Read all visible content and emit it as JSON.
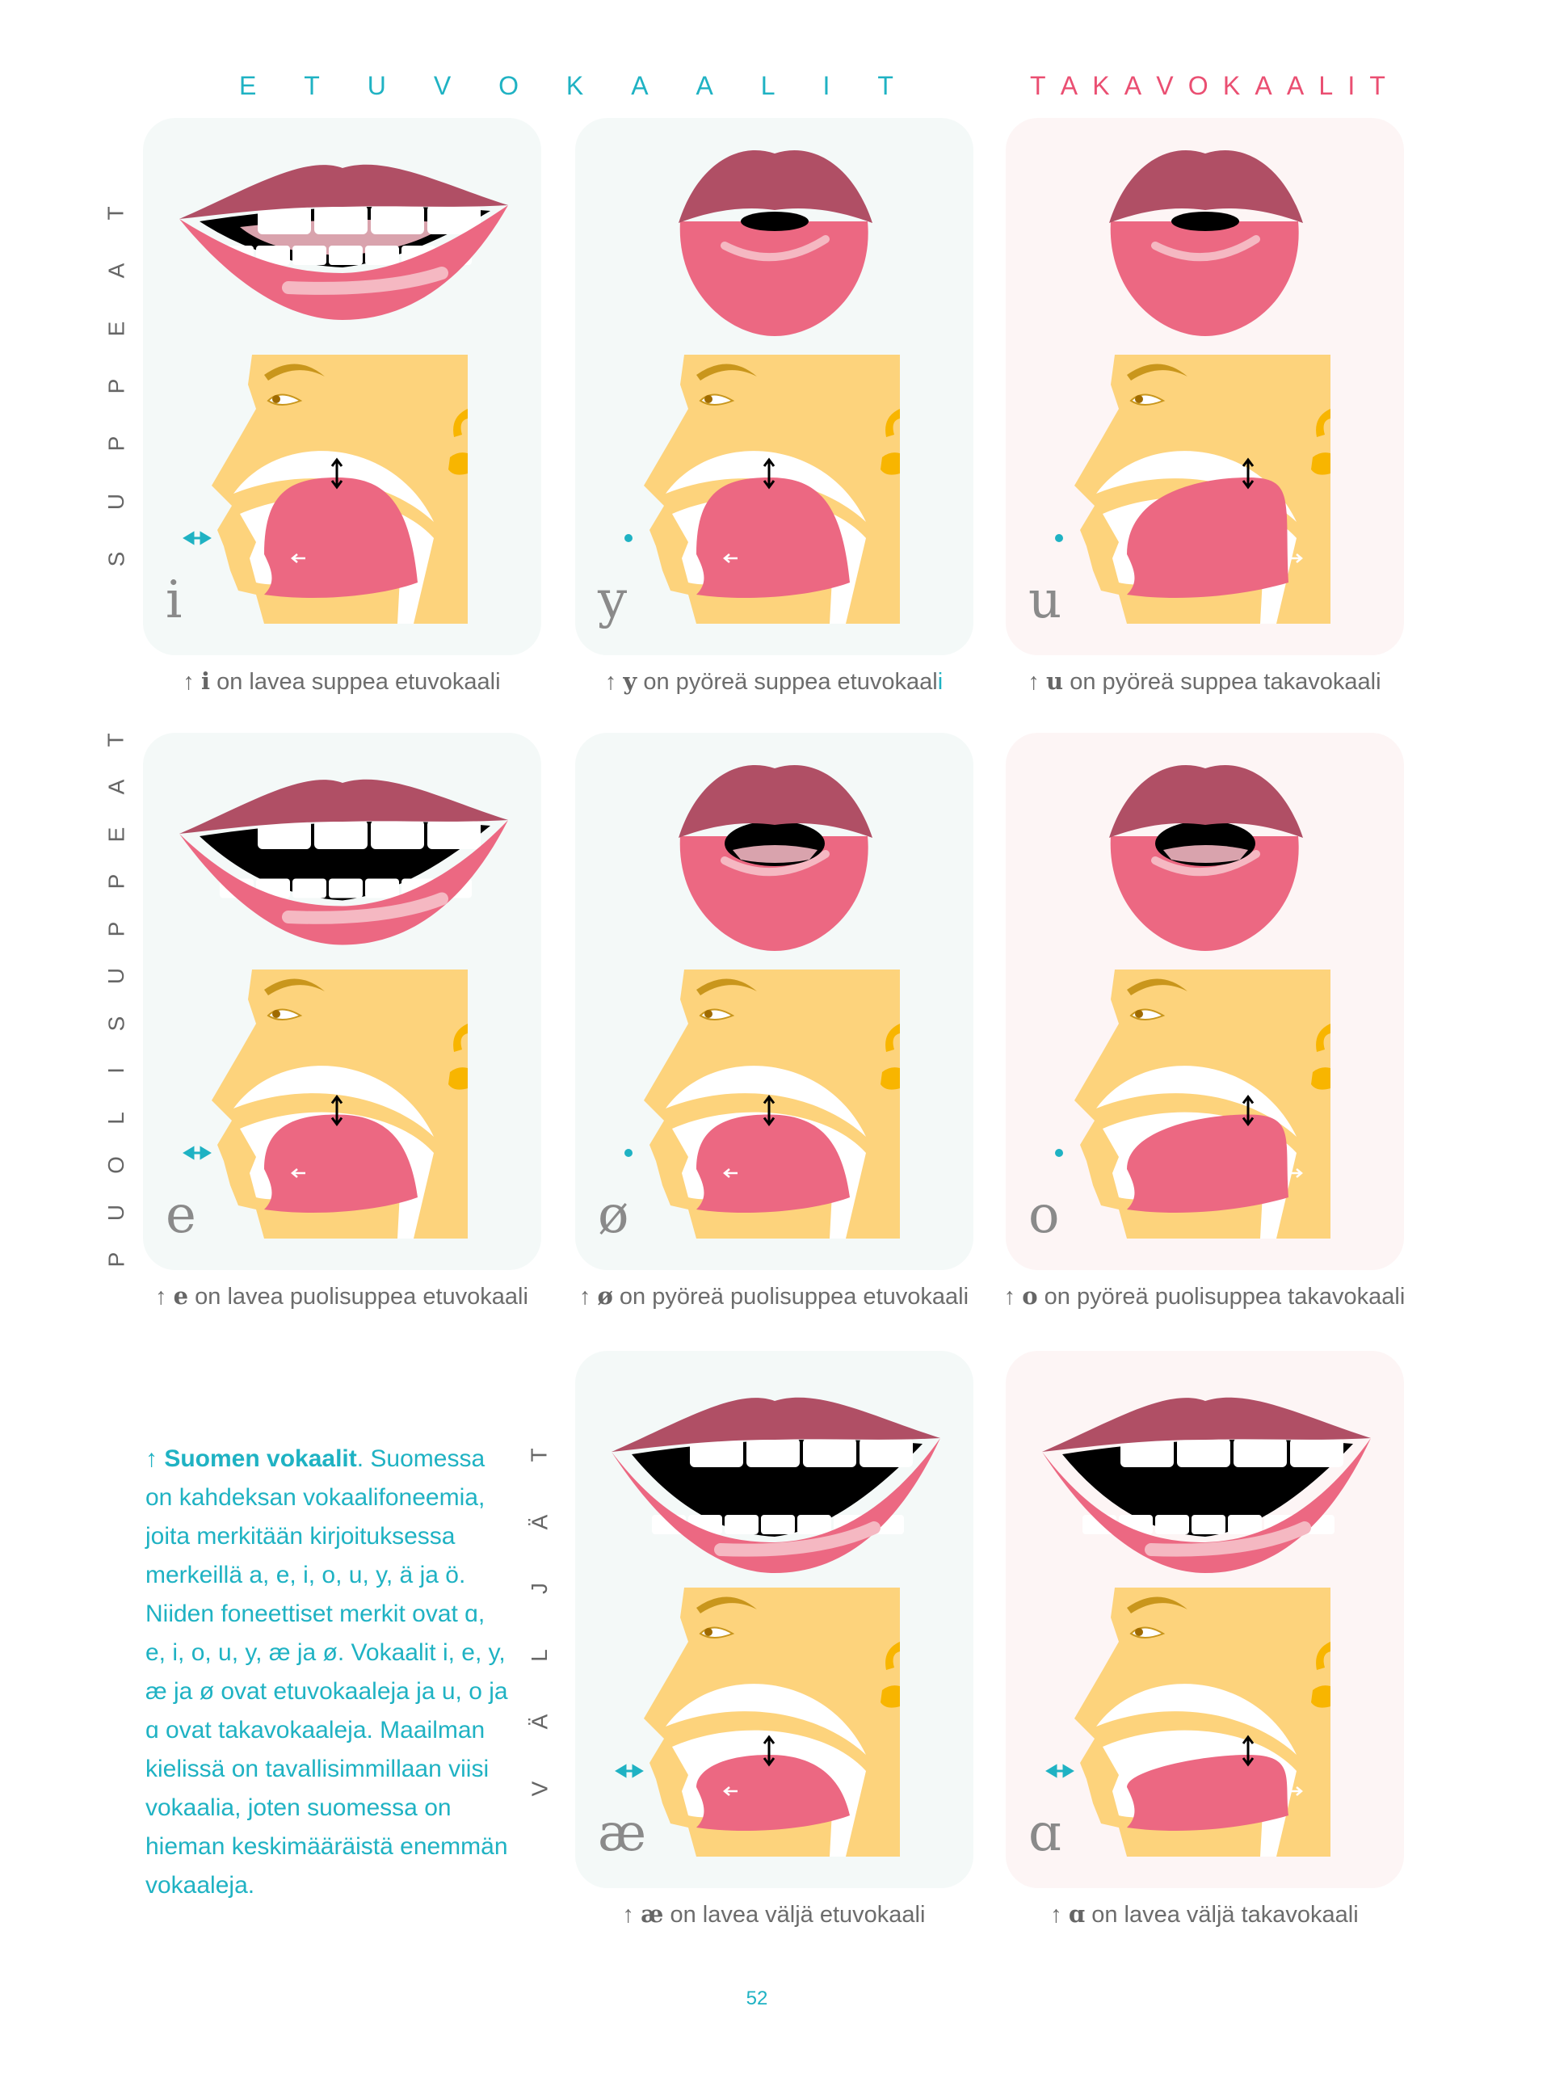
{
  "headers": {
    "front": "ETUVOKAALIT",
    "back": "TAKAVOKAALIT"
  },
  "row_labels": {
    "close": "SUPPEAT",
    "mid": "PUOLISUPPEAT",
    "open": "VÄLJÄT"
  },
  "colors": {
    "teal": "#1fb2c3",
    "pink": "#ea4f72",
    "upper_lip": "#b04f65",
    "lower_lip": "#ec6882",
    "face": "#fdd37c",
    "ear": "#f8b500"
  },
  "vowels": [
    {
      "symbol": "i",
      "caption": "on lavea suppea etuvokaali",
      "rounded": false,
      "height": "close",
      "backness": "front"
    },
    {
      "symbol": "y",
      "caption": "on pyöreä suppea etuvokaal",
      "caption_highlight": "i",
      "rounded": true,
      "height": "close",
      "backness": "front"
    },
    {
      "symbol": "u",
      "caption": "on pyöreä suppea takavokaali",
      "rounded": true,
      "height": "close",
      "backness": "back"
    },
    {
      "symbol": "e",
      "caption": "on lavea puolisuppea etuvokaali",
      "rounded": false,
      "height": "mid",
      "backness": "front"
    },
    {
      "symbol": "ø",
      "caption": "on pyöreä puolisuppea etuvokaali",
      "rounded": true,
      "height": "mid",
      "backness": "front"
    },
    {
      "symbol": "o",
      "caption": "on pyöreä puolisuppea takavokaali",
      "rounded": true,
      "height": "mid",
      "backness": "back"
    },
    {
      "symbol": "æ",
      "caption": "on lavea väljä etuvokaali",
      "rounded": false,
      "height": "open",
      "backness": "front"
    },
    {
      "symbol": "ɑ",
      "caption": "on lavea väljä takavokaali",
      "rounded": false,
      "height": "open",
      "backness": "back"
    }
  ],
  "caption_arrow": "↑",
  "sidebar": {
    "arrow": "↑",
    "title": "Suomen vokaalit",
    "text": ". Suomessa on kahdeksan vokaalifoneemia, joita merkitään kirjoituksessa merkeillä a, e, i, o, u, y, ä ja ö. Niiden foneettiset merkit ovat ɑ, e, i, o, u, y, æ ja ø. Vokaalit i, e, y, æ ja ø ovat etuvokaaleja ja u, o ja ɑ ovat takavokaaleja. Maailman kielissä on tavallisimmillaan viisi vokaalia, joten suomessa on hieman keskimääräistä enemmän vokaaleja."
  },
  "page_number": "52"
}
